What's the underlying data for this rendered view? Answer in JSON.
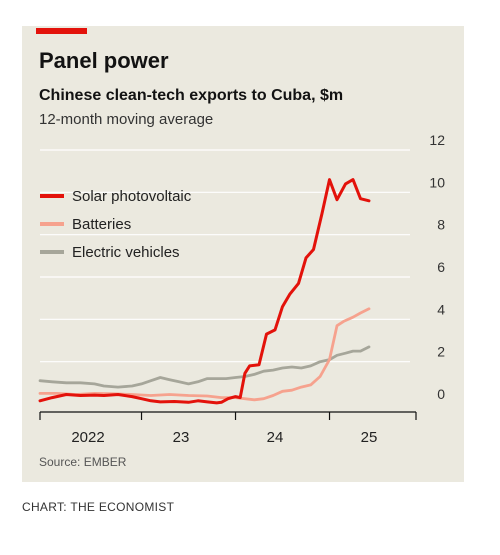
{
  "header": {
    "title": "Panel power",
    "subtitle": "Chinese clean-tech exports to Cuba, $m",
    "note": "12-month moving average"
  },
  "footer": {
    "source": "Source: EMBER",
    "credit": "CHART: THE ECONOMIST"
  },
  "colors": {
    "accent": "#e3120b",
    "background": "#ebe9df"
  },
  "chart_data": {
    "type": "line",
    "title": "Panel power",
    "subtitle": "Chinese clean-tech exports to Cuba, $m",
    "ylim": [
      0,
      12
    ],
    "y_ticks": [
      "0",
      "2",
      "4",
      "6",
      "8",
      "10",
      "12"
    ],
    "x_ticks": [
      "2022",
      "23",
      "24",
      "25"
    ],
    "grid": true,
    "legend_position": "top-left",
    "series": [
      {
        "name": "Solar photovoltaic",
        "color": "#e3120b",
        "points": [
          [
            2021.92,
            0.15
          ],
          [
            2022.05,
            0.3
          ],
          [
            2022.2,
            0.45
          ],
          [
            2022.35,
            0.4
          ],
          [
            2022.5,
            0.42
          ],
          [
            2022.6,
            0.4
          ],
          [
            2022.75,
            0.45
          ],
          [
            2022.9,
            0.35
          ],
          [
            2023.0,
            0.25
          ],
          [
            2023.1,
            0.15
          ],
          [
            2023.2,
            0.1
          ],
          [
            2023.35,
            0.12
          ],
          [
            2023.5,
            0.08
          ],
          [
            2023.6,
            0.15
          ],
          [
            2023.7,
            0.1
          ],
          [
            2023.8,
            0.05
          ],
          [
            2023.85,
            0.08
          ],
          [
            2023.92,
            0.25
          ],
          [
            2024.0,
            0.35
          ],
          [
            2024.05,
            0.3
          ],
          [
            2024.1,
            1.45
          ],
          [
            2024.15,
            1.8
          ],
          [
            2024.25,
            1.85
          ],
          [
            2024.33,
            3.3
          ],
          [
            2024.42,
            3.5
          ],
          [
            2024.5,
            4.6
          ],
          [
            2024.58,
            5.2
          ],
          [
            2024.67,
            5.7
          ],
          [
            2024.75,
            6.9
          ],
          [
            2024.83,
            7.3
          ],
          [
            2024.92,
            9.0
          ],
          [
            2025.0,
            10.6
          ],
          [
            2025.08,
            9.65
          ],
          [
            2025.17,
            10.4
          ],
          [
            2025.25,
            10.6
          ],
          [
            2025.33,
            9.7
          ],
          [
            2025.42,
            9.6
          ]
        ]
      },
      {
        "name": "Batteries",
        "color": "#f6a28e",
        "points": [
          [
            2021.92,
            0.5
          ],
          [
            2022.1,
            0.5
          ],
          [
            2022.3,
            0.45
          ],
          [
            2022.5,
            0.5
          ],
          [
            2022.7,
            0.48
          ],
          [
            2022.9,
            0.45
          ],
          [
            2023.1,
            0.4
          ],
          [
            2023.3,
            0.45
          ],
          [
            2023.5,
            0.4
          ],
          [
            2023.7,
            0.38
          ],
          [
            2023.85,
            0.3
          ],
          [
            2024.0,
            0.3
          ],
          [
            2024.2,
            0.2
          ],
          [
            2024.3,
            0.25
          ],
          [
            2024.4,
            0.4
          ],
          [
            2024.5,
            0.6
          ],
          [
            2024.6,
            0.65
          ],
          [
            2024.7,
            0.8
          ],
          [
            2024.8,
            0.9
          ],
          [
            2024.9,
            1.3
          ],
          [
            2025.0,
            2.1
          ],
          [
            2025.08,
            3.7
          ],
          [
            2025.15,
            3.9
          ],
          [
            2025.25,
            4.1
          ],
          [
            2025.33,
            4.3
          ],
          [
            2025.42,
            4.5
          ]
        ]
      },
      {
        "name": "Electric vehicles",
        "color": "#a6a69a",
        "points": [
          [
            2021.92,
            1.1
          ],
          [
            2022.05,
            1.05
          ],
          [
            2022.2,
            1.0
          ],
          [
            2022.35,
            1.0
          ],
          [
            2022.5,
            0.95
          ],
          [
            2022.6,
            0.85
          ],
          [
            2022.75,
            0.8
          ],
          [
            2022.9,
            0.85
          ],
          [
            2023.0,
            0.95
          ],
          [
            2023.1,
            1.1
          ],
          [
            2023.2,
            1.25
          ],
          [
            2023.3,
            1.15
          ],
          [
            2023.4,
            1.05
          ],
          [
            2023.5,
            0.95
          ],
          [
            2023.6,
            1.05
          ],
          [
            2023.7,
            1.2
          ],
          [
            2023.8,
            1.2
          ],
          [
            2023.9,
            1.2
          ],
          [
            2024.0,
            1.25
          ],
          [
            2024.1,
            1.3
          ],
          [
            2024.2,
            1.4
          ],
          [
            2024.3,
            1.55
          ],
          [
            2024.4,
            1.6
          ],
          [
            2024.5,
            1.7
          ],
          [
            2024.6,
            1.75
          ],
          [
            2024.7,
            1.7
          ],
          [
            2024.8,
            1.8
          ],
          [
            2024.9,
            2.0
          ],
          [
            2025.0,
            2.1
          ],
          [
            2025.08,
            2.3
          ],
          [
            2025.17,
            2.4
          ],
          [
            2025.25,
            2.5
          ],
          [
            2025.33,
            2.5
          ],
          [
            2025.42,
            2.7
          ]
        ]
      }
    ]
  }
}
